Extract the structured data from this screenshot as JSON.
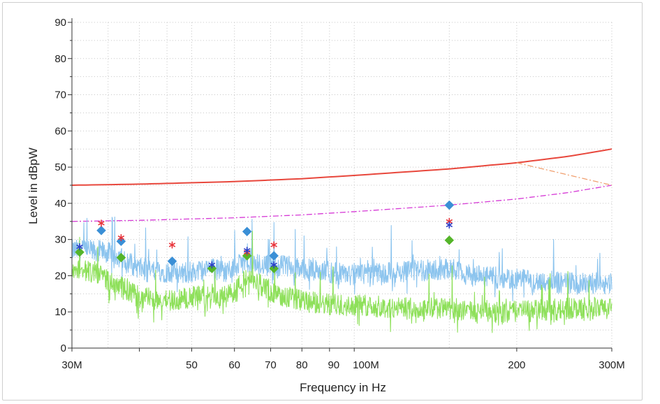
{
  "chart_data": {
    "type": "line",
    "xlabel": "Frequency in Hz",
    "ylabel": "Level in dBpW",
    "x_scale": "log",
    "xlim": [
      30000000,
      300000000
    ],
    "ylim": [
      0,
      90
    ],
    "grid": true,
    "yticks": [
      {
        "value": 0,
        "label": "0"
      },
      {
        "value": 10,
        "label": "10"
      },
      {
        "value": 20,
        "label": "20"
      },
      {
        "value": 30,
        "label": "30"
      },
      {
        "value": 40,
        "label": "40"
      },
      {
        "value": 50,
        "label": "50"
      },
      {
        "value": 60,
        "label": "60"
      },
      {
        "value": 70,
        "label": "70"
      },
      {
        "value": 80,
        "label": "80"
      },
      {
        "value": 90,
        "label": "90"
      }
    ],
    "xticks": [
      {
        "value": 30000000,
        "label": "30M"
      },
      {
        "value": 50000000,
        "label": "50"
      },
      {
        "value": 60000000,
        "label": "60"
      },
      {
        "value": 70000000,
        "label": "70"
      },
      {
        "value": 80000000,
        "label": "80"
      },
      {
        "value": 90000000,
        "label": "90"
      },
      {
        "value": 100000000,
        "label": "100M"
      },
      {
        "value": 200000000,
        "label": "200"
      },
      {
        "value": 300000000,
        "label": "300M"
      }
    ],
    "limit_lines": [
      {
        "style": "solid",
        "color": "#e8473c",
        "x": [
          30000000,
          40000000,
          60000000,
          80000000,
          100000000,
          150000000,
          200000000,
          250000000,
          300000000
        ],
        "y": [
          45,
          45.3,
          46,
          46.8,
          47.7,
          49.5,
          51.2,
          53,
          55
        ]
      },
      {
        "style": "dash-dot",
        "color": "#d63ad6",
        "x": [
          30000000,
          40000000,
          60000000,
          80000000,
          100000000,
          150000000,
          200000000,
          250000000,
          300000000
        ],
        "y": [
          35,
          35.3,
          36,
          36.8,
          37.7,
          39.5,
          41.2,
          43,
          45
        ]
      },
      {
        "style": "dash-dot",
        "color": "#f0a070",
        "x": [
          200000000,
          300000000
        ],
        "y": [
          51.2,
          45
        ]
      }
    ],
    "series": [
      {
        "type": "noisy-line",
        "color": "#8cc4ee",
        "x": [
          30000000,
          33000000,
          36000000,
          38000000,
          40000000,
          45000000,
          50000000,
          55000000,
          58000000,
          63000000,
          66000000,
          72000000,
          80000000,
          90000000,
          100000000,
          120000000,
          150000000,
          165000000,
          200000000,
          250000000,
          300000000
        ],
        "y": [
          27,
          27,
          26,
          24,
          22,
          21,
          21,
          22,
          21,
          24,
          23,
          23,
          22,
          21,
          20,
          21,
          22,
          20,
          19,
          18,
          18
        ]
      },
      {
        "type": "noisy-line",
        "color": "#8ee05a",
        "x": [
          30000000,
          33000000,
          36000000,
          38000000,
          40000000,
          45000000,
          50000000,
          55000000,
          58000000,
          63000000,
          66000000,
          72000000,
          80000000,
          90000000,
          100000000,
          120000000,
          150000000,
          165000000,
          200000000,
          250000000,
          300000000
        ],
        "y": [
          22,
          21,
          18,
          16,
          14,
          13,
          14,
          15,
          14,
          19,
          18,
          15,
          13,
          12,
          12,
          11,
          11,
          10,
          10,
          11,
          11
        ]
      },
      {
        "type": "markers",
        "marker": "diamond",
        "color": "#3a8fd6",
        "x": [
          34000000,
          37000000,
          46000000,
          63300000,
          71000000,
          150000000
        ],
        "y": [
          32.5,
          29.5,
          24,
          32.2,
          25.5,
          39.5
        ]
      },
      {
        "type": "markers",
        "marker": "diamond",
        "color": "#55b52a",
        "x": [
          31000000,
          37000000,
          54500000,
          63300000,
          71000000,
          150000000
        ],
        "y": [
          26.5,
          25,
          22,
          25.5,
          22,
          29.8
        ]
      },
      {
        "type": "markers",
        "marker": "asterisk",
        "color": "#e8333a",
        "x": [
          34000000,
          37000000,
          46000000,
          63300000,
          71000000,
          150000000
        ],
        "y": [
          34.5,
          30.5,
          28.5,
          26.5,
          28.5,
          35
        ]
      },
      {
        "type": "markers",
        "marker": "asterisk",
        "color": "#2b3fc8",
        "x": [
          31000000,
          54500000,
          63300000,
          71000000,
          150000000
        ],
        "y": [
          28,
          23,
          27,
          23,
          34
        ]
      }
    ]
  }
}
